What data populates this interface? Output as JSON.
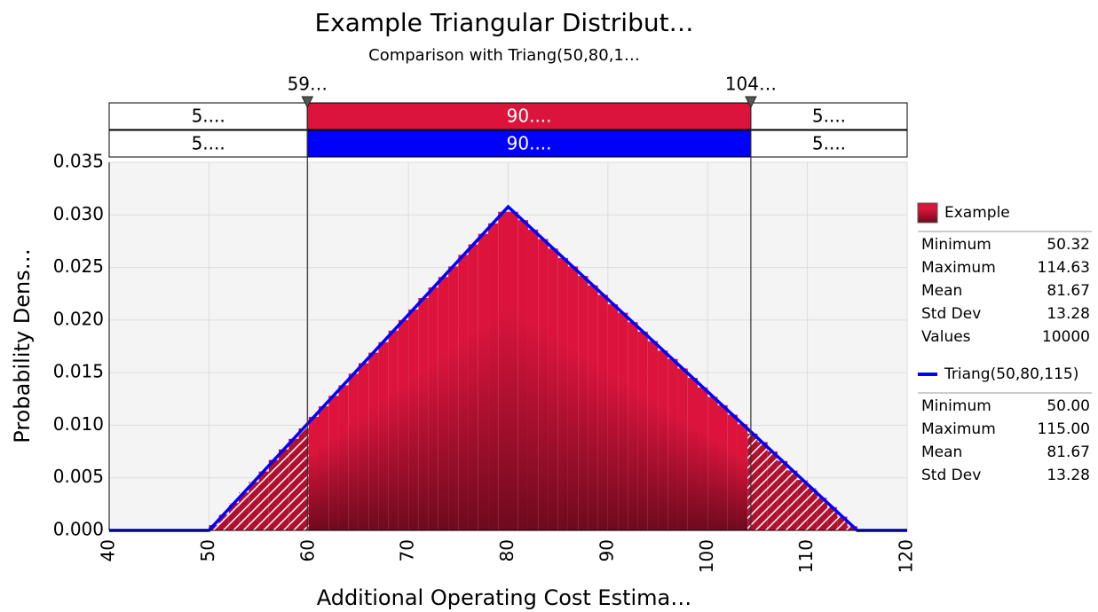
{
  "chart_data": {
    "type": "histogram",
    "title": "Example Triangular Distribut…",
    "subtitle": "Comparison with Triang(50,80,1…",
    "x_label": "Additional Operating Cost Estima…",
    "y_label": "Probability Dens…",
    "xlim": [
      40,
      120
    ],
    "xticks": [
      40,
      50,
      60,
      70,
      80,
      90,
      100,
      110,
      120
    ],
    "ylim": [
      0,
      0.035
    ],
    "yticks": [
      {
        "value": 0,
        "label": "0.000"
      },
      {
        "value": 0.005,
        "label": "0.005"
      },
      {
        "value": 0.01,
        "label": "0.010"
      },
      {
        "value": 0.015,
        "label": "0.015"
      },
      {
        "value": 0.02,
        "label": "0.020"
      },
      {
        "value": 0.025,
        "label": "0.025"
      },
      {
        "value": 0.03,
        "label": "0.030"
      },
      {
        "value": 0.035,
        "label": "0.035"
      }
    ],
    "grid": true,
    "delimiters": [
      {
        "value": 59.87,
        "label": "59…"
      },
      {
        "value": 104.33,
        "label": "104…"
      }
    ],
    "bands": [
      {
        "color": "#dc143c",
        "labels": [
          "5....",
          "90....",
          "5...."
        ]
      },
      {
        "color": "#0000ff",
        "labels": [
          "5....",
          "90....",
          "5...."
        ]
      }
    ],
    "series": [
      {
        "name": "Example",
        "type": "histogram",
        "color": "#dc143c",
        "bins": [
          50,
          51,
          52,
          53,
          54,
          55,
          56,
          57,
          58,
          59,
          60,
          61,
          62,
          63,
          64,
          65,
          66,
          67,
          68,
          69,
          70,
          71,
          72,
          73,
          74,
          75,
          76,
          77,
          78,
          79,
          80,
          81,
          82,
          83,
          84,
          85,
          86,
          87,
          88,
          89,
          90,
          91,
          92,
          93,
          94,
          95,
          96,
          97,
          98,
          99,
          100,
          101,
          102,
          103,
          104,
          105,
          106,
          107,
          108,
          109,
          110,
          111,
          112,
          113,
          114,
          115
        ],
        "values": [
          0.0005,
          0.0015,
          0.0026,
          0.0036,
          0.0046,
          0.0056,
          0.0067,
          0.0077,
          0.0087,
          0.0097,
          0.0108,
          0.0118,
          0.0128,
          0.0138,
          0.0149,
          0.0159,
          0.0169,
          0.0179,
          0.019,
          0.02,
          0.021,
          0.0221,
          0.0231,
          0.0241,
          0.0251,
          0.0262,
          0.0272,
          0.0282,
          0.0292,
          0.0303,
          0.0303,
          0.0295,
          0.0286,
          0.0277,
          0.0268,
          0.0259,
          0.0251,
          0.0242,
          0.0233,
          0.0224,
          0.0215,
          0.0207,
          0.0198,
          0.0189,
          0.018,
          0.0171,
          0.0163,
          0.0154,
          0.0145,
          0.0136,
          0.0127,
          0.0119,
          0.011,
          0.0101,
          0.0092,
          0.0084,
          0.0075,
          0.0066,
          0.0057,
          0.0048,
          0.004,
          0.0031,
          0.0022,
          0.0013,
          0.0004
        ]
      },
      {
        "name": "Triang(50,80,115)",
        "type": "line",
        "color": "#0000ff",
        "x": [
          40,
          50,
          80,
          115,
          120
        ],
        "values": [
          0,
          0,
          0.03077,
          0,
          0
        ]
      }
    ],
    "legend_stats": [
      [
        [
          "Minimum",
          "50.32"
        ],
        [
          "Maximum",
          "114.63"
        ],
        [
          "Mean",
          "81.67"
        ],
        [
          "Std Dev",
          "13.28"
        ],
        [
          "Values",
          "10000"
        ]
      ],
      [
        [
          "Minimum",
          "50.00"
        ],
        [
          "Maximum",
          "115.00"
        ],
        [
          "Mean",
          "81.67"
        ],
        [
          "Std Dev",
          "13.28"
        ]
      ]
    ]
  }
}
